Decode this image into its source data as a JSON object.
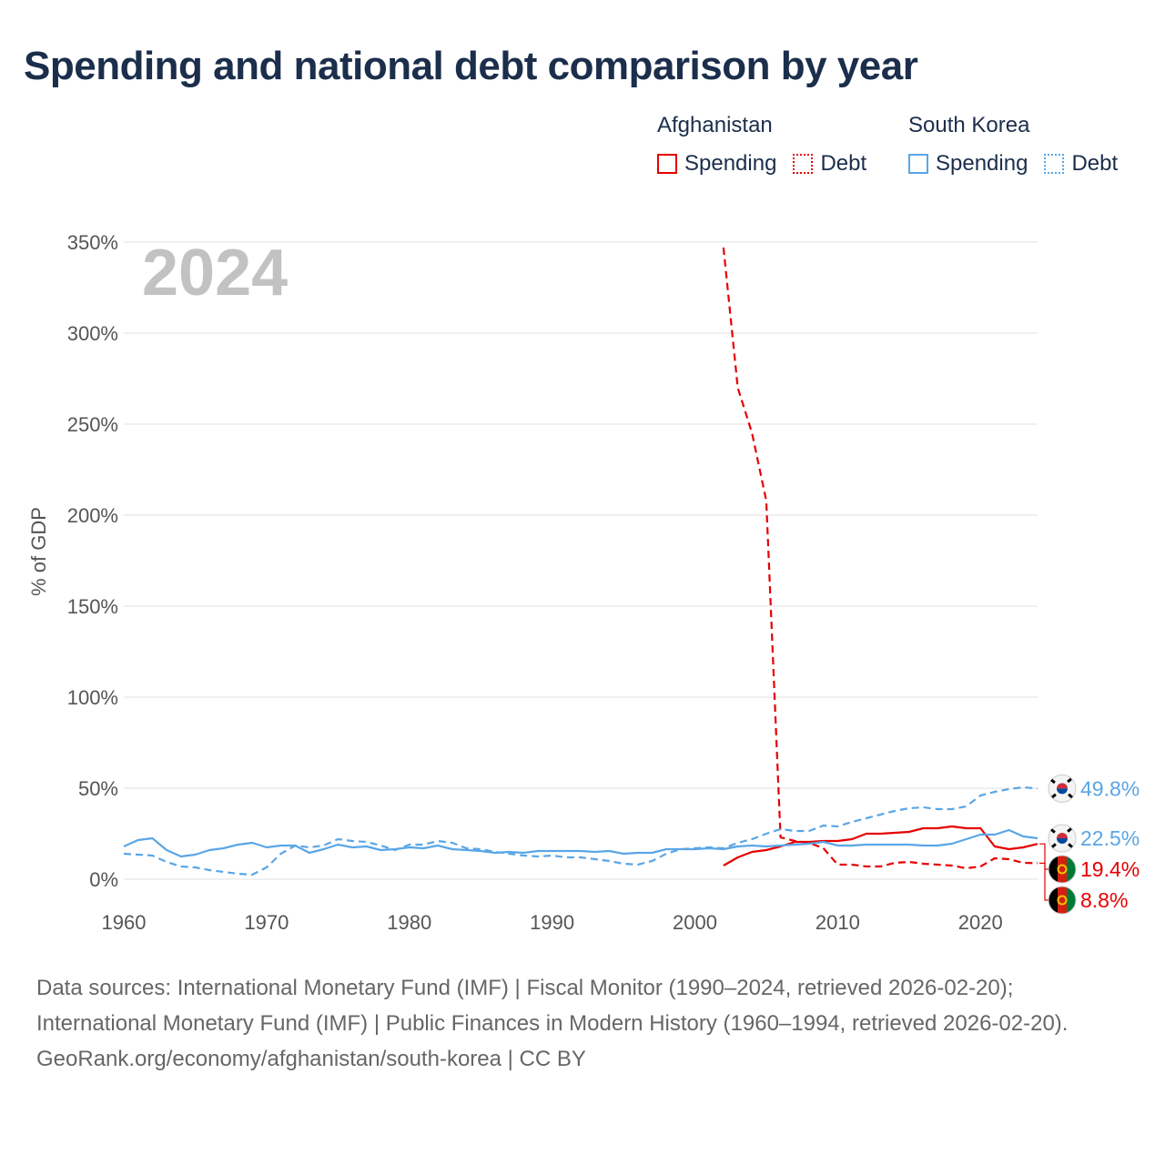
{
  "title": "Spending and national debt comparison by year",
  "colors": {
    "afghanistan": "#e60000",
    "south_korea": "#5aa6e6",
    "grid": "#e6e6e6",
    "text": "#1b2e4b"
  },
  "legend": {
    "afghanistan": {
      "label": "Afghanistan",
      "spending": "Spending",
      "debt": "Debt"
    },
    "south_korea": {
      "label": "South Korea",
      "spending": "Spending",
      "debt": "Debt"
    }
  },
  "chart_data": {
    "type": "line",
    "ylabel": "% of GDP",
    "year_watermark": "2024",
    "xlim": [
      1960,
      2024
    ],
    "ylim": [
      0,
      350
    ],
    "xticks": [
      1960,
      1970,
      1980,
      1990,
      2000,
      2010,
      2020
    ],
    "yticks": [
      0,
      50,
      100,
      150,
      200,
      250,
      300,
      350
    ],
    "ytick_labels": [
      "0%",
      "50%",
      "100%",
      "150%",
      "200%",
      "250%",
      "300%",
      "350%"
    ],
    "series": [
      {
        "name": "Afghanistan Spending",
        "country": "afghanistan",
        "dash": "solid",
        "end_label": "19.4%",
        "points": [
          [
            2002,
            7.5
          ],
          [
            2003,
            12
          ],
          [
            2004,
            15
          ],
          [
            2005,
            16
          ],
          [
            2006,
            18
          ],
          [
            2007,
            20.5
          ],
          [
            2008,
            20.5
          ],
          [
            2009,
            21
          ],
          [
            2010,
            21
          ],
          [
            2011,
            22
          ],
          [
            2012,
            25
          ],
          [
            2013,
            25
          ],
          [
            2014,
            25.5
          ],
          [
            2015,
            26
          ],
          [
            2016,
            28
          ],
          [
            2017,
            28
          ],
          [
            2018,
            29
          ],
          [
            2019,
            28
          ],
          [
            2020,
            28
          ],
          [
            2021,
            18
          ],
          [
            2022,
            16.5
          ],
          [
            2023,
            17.5
          ],
          [
            2024,
            19.4
          ]
        ]
      },
      {
        "name": "Afghanistan Debt",
        "country": "afghanistan",
        "dash": "dash",
        "end_label": "8.8%",
        "points": [
          [
            2002,
            347
          ],
          [
            2003,
            270
          ],
          [
            2004,
            245
          ],
          [
            2005,
            208
          ],
          [
            2006,
            23
          ],
          [
            2007,
            21
          ],
          [
            2008,
            20
          ],
          [
            2009,
            17
          ],
          [
            2010,
            8
          ],
          [
            2011,
            8
          ],
          [
            2012,
            7
          ],
          [
            2013,
            7
          ],
          [
            2014,
            9
          ],
          [
            2015,
            9.5
          ],
          [
            2016,
            8.5
          ],
          [
            2017,
            8
          ],
          [
            2018,
            7.5
          ],
          [
            2019,
            6
          ],
          [
            2020,
            7
          ],
          [
            2021,
            11.5
          ],
          [
            2022,
            11
          ],
          [
            2023,
            9
          ],
          [
            2024,
            8.8
          ]
        ]
      },
      {
        "name": "South Korea Spending",
        "country": "south_korea",
        "dash": "solid",
        "end_label": "22.5%",
        "points": [
          [
            1960,
            18
          ],
          [
            1961,
            21.5
          ],
          [
            1962,
            22.5
          ],
          [
            1963,
            16
          ],
          [
            1964,
            12.5
          ],
          [
            1965,
            13.5
          ],
          [
            1966,
            16
          ],
          [
            1967,
            17
          ],
          [
            1968,
            19
          ],
          [
            1969,
            20
          ],
          [
            1970,
            17.5
          ],
          [
            1971,
            18.5
          ],
          [
            1972,
            18.5
          ],
          [
            1973,
            14.5
          ],
          [
            1974,
            16.5
          ],
          [
            1975,
            19
          ],
          [
            1976,
            17.5
          ],
          [
            1977,
            18
          ],
          [
            1978,
            16
          ],
          [
            1979,
            16.5
          ],
          [
            1980,
            17.5
          ],
          [
            1981,
            17
          ],
          [
            1982,
            18.5
          ],
          [
            1983,
            16.5
          ],
          [
            1984,
            16
          ],
          [
            1985,
            15.5
          ],
          [
            1986,
            14.5
          ],
          [
            1987,
            15
          ],
          [
            1988,
            14.5
          ],
          [
            1989,
            15.5
          ],
          [
            1990,
            15.5
          ],
          [
            1991,
            15.5
          ],
          [
            1992,
            15.5
          ],
          [
            1993,
            15
          ],
          [
            1994,
            15.5
          ],
          [
            1995,
            14
          ],
          [
            1996,
            14.5
          ],
          [
            1997,
            14.5
          ],
          [
            1998,
            16.5
          ],
          [
            1999,
            16.5
          ],
          [
            2000,
            16.5
          ],
          [
            2001,
            17
          ],
          [
            2002,
            16.5
          ],
          [
            2003,
            18
          ],
          [
            2004,
            18.5
          ],
          [
            2005,
            18
          ],
          [
            2006,
            18.5
          ],
          [
            2007,
            19
          ],
          [
            2008,
            19.5
          ],
          [
            2009,
            20.5
          ],
          [
            2010,
            18.5
          ],
          [
            2011,
            18.5
          ],
          [
            2012,
            19
          ],
          [
            2013,
            19
          ],
          [
            2014,
            19
          ],
          [
            2015,
            19
          ],
          [
            2016,
            18.5
          ],
          [
            2017,
            18.5
          ],
          [
            2018,
            19.5
          ],
          [
            2019,
            22
          ],
          [
            2020,
            24.5
          ],
          [
            2021,
            24.5
          ],
          [
            2022,
            27
          ],
          [
            2023,
            23.5
          ],
          [
            2024,
            22.5
          ]
        ]
      },
      {
        "name": "South Korea Debt",
        "country": "south_korea",
        "dash": "dash",
        "end_label": "49.8%",
        "points": [
          [
            1960,
            14
          ],
          [
            1961,
            13.5
          ],
          [
            1962,
            13
          ],
          [
            1963,
            9.5
          ],
          [
            1964,
            7
          ],
          [
            1965,
            6.5
          ],
          [
            1966,
            5
          ],
          [
            1967,
            4
          ],
          [
            1968,
            3
          ],
          [
            1969,
            2.5
          ],
          [
            1970,
            6.5
          ],
          [
            1971,
            14
          ],
          [
            1972,
            18.5
          ],
          [
            1973,
            17.5
          ],
          [
            1974,
            18.5
          ],
          [
            1975,
            22
          ],
          [
            1976,
            21
          ],
          [
            1977,
            20.5
          ],
          [
            1978,
            18.5
          ],
          [
            1979,
            16
          ],
          [
            1980,
            19
          ],
          [
            1981,
            19
          ],
          [
            1982,
            21
          ],
          [
            1983,
            20
          ],
          [
            1984,
            17
          ],
          [
            1985,
            16.5
          ],
          [
            1986,
            15
          ],
          [
            1987,
            14
          ],
          [
            1988,
            13
          ],
          [
            1989,
            12.5
          ],
          [
            1990,
            13
          ],
          [
            1991,
            12
          ],
          [
            1992,
            12
          ],
          [
            1993,
            11
          ],
          [
            1994,
            10
          ],
          [
            1995,
            8.5
          ],
          [
            1996,
            8
          ],
          [
            1997,
            10
          ],
          [
            1998,
            14
          ],
          [
            1999,
            16.5
          ],
          [
            2000,
            17
          ],
          [
            2001,
            17.5
          ],
          [
            2002,
            17
          ],
          [
            2003,
            20
          ],
          [
            2004,
            22
          ],
          [
            2005,
            25
          ],
          [
            2006,
            27.5
          ],
          [
            2007,
            26.5
          ],
          [
            2008,
            26.5
          ],
          [
            2009,
            29.5
          ],
          [
            2010,
            29
          ],
          [
            2011,
            31.5
          ],
          [
            2012,
            33.5
          ],
          [
            2013,
            35.5
          ],
          [
            2014,
            37.5
          ],
          [
            2015,
            39
          ],
          [
            2016,
            39.5
          ],
          [
            2017,
            38.5
          ],
          [
            2018,
            38.5
          ],
          [
            2019,
            40
          ],
          [
            2020,
            46
          ],
          [
            2021,
            48
          ],
          [
            2022,
            49.5
          ],
          [
            2023,
            50.5
          ],
          [
            2024,
            49.8
          ]
        ]
      }
    ]
  },
  "footer": {
    "sources": "Data sources: International Monetary Fund (IMF) | Fiscal Monitor (1990–2024, retrieved 2026-02-20); International Monetary Fund (IMF) | Public Finances in Modern History (1960–1994, retrieved 2026-02-20).",
    "attribution": "GeoRank.org/economy/afghanistan/south-korea | CC BY"
  }
}
